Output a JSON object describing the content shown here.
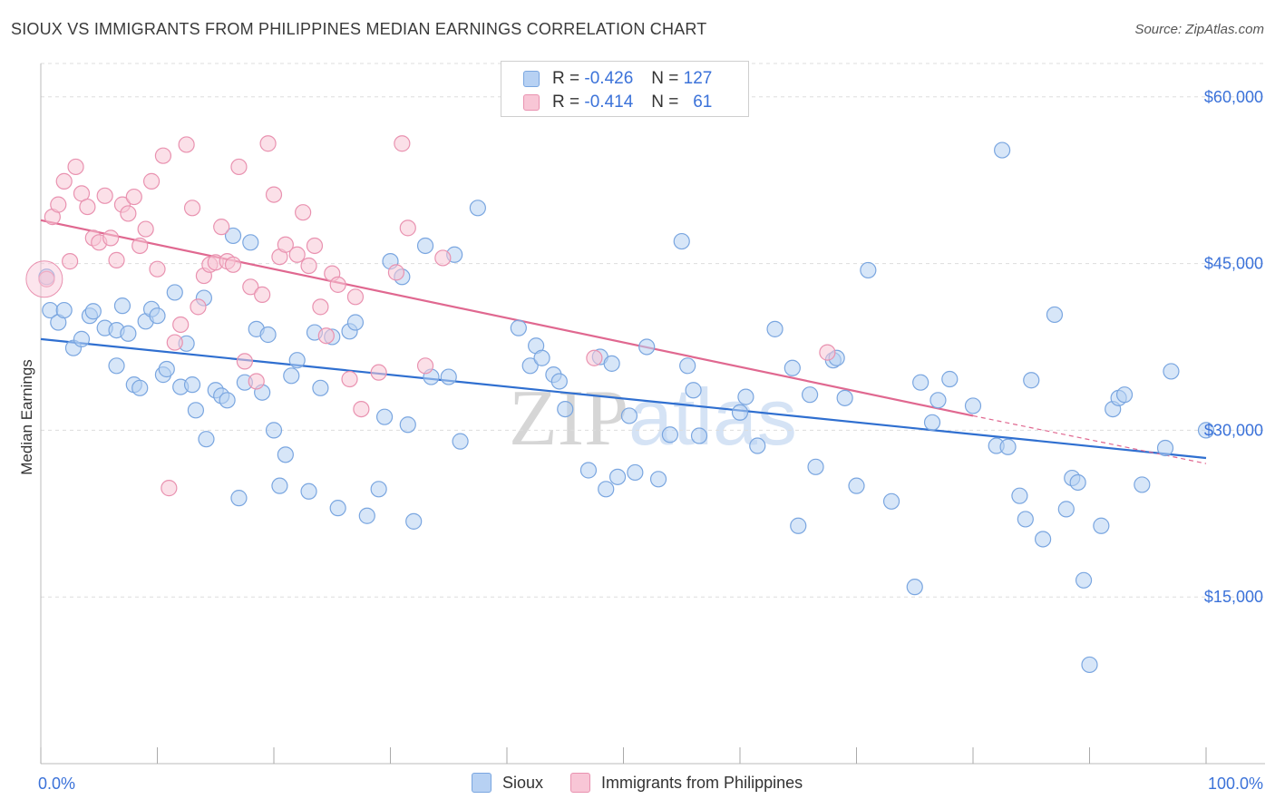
{
  "title": "SIOUX VS IMMIGRANTS FROM PHILIPPINES MEDIAN EARNINGS CORRELATION CHART",
  "source": "Source: ZipAtlas.com",
  "watermark": "ZIPatlas",
  "legend_top": [
    {
      "r_label": "R =",
      "r_value": "-0.426",
      "n_label": "N =",
      "n_value": "127"
    },
    {
      "r_label": "R =",
      "r_value": "-0.414",
      "n_label": "N =",
      "n_value": "61"
    }
  ],
  "colors": {
    "sioux_fill": "#b7d1f3",
    "sioux_stroke": "#7aa6e0",
    "sioux_line": "#2f6fd0",
    "phil_fill": "#f8c6d6",
    "phil_stroke": "#e992b0",
    "phil_line": "#e06890",
    "axis_text": "#3b72d9",
    "grid": "#dddddd"
  },
  "chart_data": {
    "type": "scatter",
    "title": "SIOUX VS IMMIGRANTS FROM PHILIPPINES MEDIAN EARNINGS CORRELATION CHART",
    "xlabel": "",
    "ylabel": "Median Earnings",
    "xlim": [
      0,
      100
    ],
    "ylim": [
      0,
      63000
    ],
    "x_tick_labels": [
      "0.0%",
      "100.0%"
    ],
    "y_ticks": [
      15000,
      30000,
      45000,
      60000
    ],
    "y_tick_labels": [
      "$15,000",
      "$30,000",
      "$45,000",
      "$60,000"
    ],
    "grid": true,
    "legend_position": "bottom",
    "series": [
      {
        "name": "Sioux",
        "r": -0.426,
        "n": 127,
        "trend": {
          "x0": 0,
          "y0": 38200,
          "x1": 100,
          "y1": 27500
        },
        "points": [
          [
            0.5,
            43800
          ],
          [
            0.8,
            40800
          ],
          [
            1.5,
            39700
          ],
          [
            2.0,
            40800
          ],
          [
            2.8,
            37400
          ],
          [
            3.5,
            38200
          ],
          [
            4.2,
            40300
          ],
          [
            4.5,
            40700
          ],
          [
            5.5,
            39200
          ],
          [
            6.5,
            39000
          ],
          [
            6.5,
            35800
          ],
          [
            7.0,
            41200
          ],
          [
            7.5,
            38700
          ],
          [
            8.0,
            34100
          ],
          [
            8.5,
            33800
          ],
          [
            9.0,
            39800
          ],
          [
            9.5,
            40900
          ],
          [
            10,
            40300
          ],
          [
            10.5,
            35000
          ],
          [
            10.8,
            35500
          ],
          [
            11.5,
            42400
          ],
          [
            12,
            33900
          ],
          [
            12.5,
            37800
          ],
          [
            13,
            34100
          ],
          [
            13.3,
            31800
          ],
          [
            14,
            41900
          ],
          [
            14.2,
            29200
          ],
          [
            15,
            33600
          ],
          [
            15.5,
            33100
          ],
          [
            16,
            32700
          ],
          [
            16.5,
            47500
          ],
          [
            17,
            23900
          ],
          [
            17.5,
            34300
          ],
          [
            18,
            46900
          ],
          [
            18.5,
            39100
          ],
          [
            19,
            33400
          ],
          [
            19.5,
            38600
          ],
          [
            20,
            30000
          ],
          [
            20.5,
            25000
          ],
          [
            21,
            27800
          ],
          [
            21.5,
            34900
          ],
          [
            22,
            36300
          ],
          [
            23,
            24500
          ],
          [
            23.5,
            38800
          ],
          [
            24,
            33800
          ],
          [
            25,
            38400
          ],
          [
            25.5,
            23000
          ],
          [
            26.5,
            38900
          ],
          [
            27,
            39700
          ],
          [
            28,
            22300
          ],
          [
            29,
            24700
          ],
          [
            29.5,
            31200
          ],
          [
            30,
            45200
          ],
          [
            31,
            43800
          ],
          [
            31.5,
            30500
          ],
          [
            32,
            21800
          ],
          [
            33,
            46600
          ],
          [
            33.5,
            34800
          ],
          [
            35,
            34800
          ],
          [
            35.5,
            45800
          ],
          [
            36,
            29000
          ],
          [
            37.5,
            50000
          ],
          [
            41,
            39200
          ],
          [
            42,
            35800
          ],
          [
            42.5,
            37600
          ],
          [
            43,
            36500
          ],
          [
            44,
            35000
          ],
          [
            44.5,
            34400
          ],
          [
            45,
            31900
          ],
          [
            47,
            26400
          ],
          [
            48,
            36600
          ],
          [
            48.5,
            24700
          ],
          [
            49,
            36000
          ],
          [
            49.5,
            25800
          ],
          [
            50.5,
            31300
          ],
          [
            51,
            26200
          ],
          [
            52,
            37500
          ],
          [
            53,
            25600
          ],
          [
            54,
            29600
          ],
          [
            55.5,
            35800
          ],
          [
            55,
            47000
          ],
          [
            56,
            33600
          ],
          [
            56.5,
            29500
          ],
          [
            60,
            31600
          ],
          [
            60.5,
            33000
          ],
          [
            61.5,
            28600
          ],
          [
            63,
            39100
          ],
          [
            64.5,
            35600
          ],
          [
            65,
            21400
          ],
          [
            66,
            33200
          ],
          [
            66.5,
            26700
          ],
          [
            68,
            36300
          ],
          [
            68.3,
            36500
          ],
          [
            69,
            32900
          ],
          [
            70,
            25000
          ],
          [
            71,
            44400
          ],
          [
            73,
            23600
          ],
          [
            75,
            15900
          ],
          [
            75.5,
            34300
          ],
          [
            76.5,
            30700
          ],
          [
            77,
            32700
          ],
          [
            78,
            34600
          ],
          [
            80,
            32200
          ],
          [
            82,
            28600
          ],
          [
            82.5,
            55200
          ],
          [
            83,
            28500
          ],
          [
            84,
            24100
          ],
          [
            84.5,
            22000
          ],
          [
            85,
            34500
          ],
          [
            86,
            20200
          ],
          [
            87,
            40400
          ],
          [
            88,
            22900
          ],
          [
            88.5,
            25700
          ],
          [
            89,
            25300
          ],
          [
            89.5,
            16500
          ],
          [
            90,
            8900
          ],
          [
            91,
            21400
          ],
          [
            92,
            31900
          ],
          [
            92.5,
            32900
          ],
          [
            93,
            33200
          ],
          [
            94.5,
            25100
          ],
          [
            96.5,
            28400
          ],
          [
            97,
            35300
          ],
          [
            100,
            30000
          ]
        ]
      },
      {
        "name": "Immigrants from Philippines",
        "r": -0.414,
        "n": 61,
        "trend": {
          "x0": 0,
          "y0": 48900,
          "x1": 80,
          "y1": 31300,
          "dash_x1": 100,
          "dash_y1": 27000
        },
        "points": [
          [
            0.5,
            43600
          ],
          [
            1.0,
            49200
          ],
          [
            1.5,
            50300
          ],
          [
            2.0,
            52400
          ],
          [
            2.5,
            45200
          ],
          [
            3.0,
            53700
          ],
          [
            3.5,
            51300
          ],
          [
            4.0,
            50100
          ],
          [
            4.5,
            47300
          ],
          [
            5.0,
            46900
          ],
          [
            5.5,
            51100
          ],
          [
            6.0,
            47300
          ],
          [
            6.5,
            45300
          ],
          [
            7.0,
            50300
          ],
          [
            7.5,
            49500
          ],
          [
            8.0,
            51000
          ],
          [
            8.5,
            46600
          ],
          [
            9.0,
            48100
          ],
          [
            9.5,
            52400
          ],
          [
            10.0,
            44500
          ],
          [
            10.5,
            54700
          ],
          [
            11.0,
            24800
          ],
          [
            11.5,
            37900
          ],
          [
            12.0,
            39500
          ],
          [
            12.5,
            55700
          ],
          [
            13.0,
            50000
          ],
          [
            13.5,
            41100
          ],
          [
            14.0,
            43900
          ],
          [
            14.5,
            44900
          ],
          [
            15.0,
            45100
          ],
          [
            15.5,
            48300
          ],
          [
            16.0,
            45200
          ],
          [
            16.5,
            44900
          ],
          [
            17.0,
            53700
          ],
          [
            17.5,
            36200
          ],
          [
            18.0,
            42900
          ],
          [
            18.5,
            34400
          ],
          [
            19.0,
            42200
          ],
          [
            19.5,
            55800
          ],
          [
            20.0,
            51200
          ],
          [
            20.5,
            45600
          ],
          [
            21.0,
            46700
          ],
          [
            22.0,
            45800
          ],
          [
            22.5,
            49600
          ],
          [
            23.0,
            44800
          ],
          [
            23.5,
            46600
          ],
          [
            24.0,
            41100
          ],
          [
            24.5,
            38500
          ],
          [
            25.0,
            44100
          ],
          [
            25.5,
            43100
          ],
          [
            26.5,
            34600
          ],
          [
            27.0,
            42000
          ],
          [
            27.5,
            31900
          ],
          [
            29.0,
            35200
          ],
          [
            30.5,
            44200
          ],
          [
            31.0,
            55800
          ],
          [
            31.5,
            48200
          ],
          [
            33.0,
            35800
          ],
          [
            34.5,
            45500
          ],
          [
            47.5,
            36500
          ],
          [
            67.5,
            37000
          ]
        ]
      }
    ]
  },
  "bottom_legend": [
    "Sioux",
    "Immigrants from Philippines"
  ]
}
